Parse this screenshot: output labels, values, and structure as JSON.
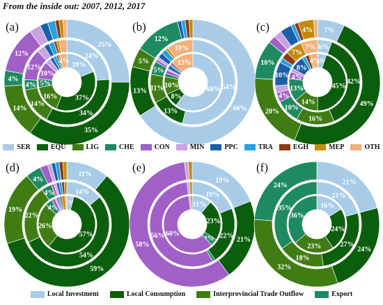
{
  "figure_title": "From the inside out: 2007, 2012, 2017",
  "sector_legend": [
    {
      "name": "SER",
      "color": "#a8cce8"
    },
    {
      "name": "EQU",
      "color": "#0b5e0b"
    },
    {
      "name": "LIG",
      "color": "#3f7d14"
    },
    {
      "name": "CHE",
      "color": "#1f8a60"
    },
    {
      "name": "CON",
      "color": "#a15fc8"
    },
    {
      "name": "MIN",
      "color": "#c9a3e0"
    },
    {
      "name": "PPC",
      "color": "#1a5fa8"
    },
    {
      "name": "TRA",
      "color": "#29a0e0"
    },
    {
      "name": "EGH",
      "color": "#8b3a12"
    },
    {
      "name": "MEP",
      "color": "#c28a0a"
    },
    {
      "name": "OTH",
      "color": "#f3b07a"
    }
  ],
  "demand_legend": [
    {
      "name": "Local Investment",
      "color": "#a8cce8"
    },
    {
      "name": "Local Consumption",
      "color": "#0b5e0b"
    },
    {
      "name": "Interprovincial Trade Outflow",
      "color": "#3f7d14"
    },
    {
      "name": "Export",
      "color": "#1f8a60"
    }
  ],
  "chart_data": [
    {
      "panel": "(a)",
      "type": "pie",
      "variant": "nested-donut",
      "rings": [
        "2007",
        "2012",
        "2017"
      ],
      "categories": [
        "SER",
        "EQU",
        "LIG",
        "CHE",
        "CON",
        "MIN",
        "PPC",
        "TRA",
        "EGH",
        "MEP",
        "OTH"
      ],
      "series": [
        {
          "values": [
            19,
            37,
            16,
            5,
            10,
            3,
            2,
            2,
            1,
            1,
            4
          ]
        },
        {
          "values": [
            24,
            34,
            14,
            4,
            12,
            3,
            2,
            2,
            1,
            1,
            3
          ]
        },
        {
          "values": [
            25,
            35,
            14,
            4,
            12,
            3,
            2,
            2,
            1,
            1,
            1
          ]
        }
      ]
    },
    {
      "panel": "(b)",
      "type": "pie",
      "variant": "nested-donut",
      "rings": [
        "2007",
        "2012",
        "2017"
      ],
      "categories": [
        "SER",
        "EQU",
        "LIG",
        "CHE",
        "CON",
        "MIN",
        "PPC",
        "TRA",
        "EGH",
        "MEP",
        "OTH"
      ],
      "series": [
        {
          "values": [
            60,
            8,
            10,
            2,
            2,
            1,
            2,
            1,
            1,
            0,
            13
          ]
        },
        {
          "values": [
            54,
            13,
            11,
            5,
            1,
            1,
            2,
            2,
            0,
            1,
            10
          ]
        },
        {
          "values": [
            66,
            13,
            5,
            12,
            0,
            0,
            1,
            1,
            1,
            1,
            0
          ]
        }
      ]
    },
    {
      "panel": "(c)",
      "type": "pie",
      "variant": "nested-donut",
      "rings": [
        "2007",
        "2012",
        "2017"
      ],
      "categories": [
        "SER",
        "EQU",
        "LIG",
        "CHE",
        "CON",
        "MIN",
        "PPC",
        "TRA",
        "EGH",
        "MEP",
        "OTH"
      ],
      "series": [
        {
          "values": [
            5,
            45,
            14,
            13,
            4,
            2,
            8,
            2,
            2,
            1,
            4
          ]
        },
        {
          "values": [
            6,
            42,
            16,
            10,
            4,
            3,
            10,
            2,
            3,
            7,
            7
          ]
        },
        {
          "values": [
            7,
            49,
            20,
            10,
            2,
            2,
            3,
            1,
            1,
            4,
            1
          ]
        }
      ]
    },
    {
      "panel": "(d)",
      "type": "pie",
      "variant": "nested-donut",
      "rings": [
        "2007",
        "2012",
        "2017"
      ],
      "categories": [
        "Local Investment",
        "Local Consumption",
        "Interprovincial Trade Outflow",
        "Export",
        "CON",
        "MIN",
        "PPC",
        "TRA",
        "EGH",
        "MEP",
        "OTH"
      ],
      "series": [
        {
          "values": [
            4,
            57,
            26,
            4,
            2,
            1,
            1,
            1,
            1,
            2,
            1
          ]
        },
        {
          "values": [
            14,
            54,
            22,
            4,
            1,
            1,
            1,
            1,
            1,
            1,
            0
          ]
        },
        {
          "values": [
            11,
            59,
            19,
            4,
            2,
            1,
            1,
            1,
            1,
            1,
            0
          ]
        }
      ]
    },
    {
      "panel": "(e)",
      "type": "pie",
      "variant": "nested-donut",
      "rings": [
        "2007",
        "2012",
        "2017"
      ],
      "categories": [
        "Local Investment",
        "Local Consumption",
        "Interprovincial Trade Outflow",
        "Export",
        "CON",
        "MIN",
        "PPC",
        "TRA",
        "EGH",
        "MEP",
        "OTH"
      ],
      "series": [
        {
          "values": [
            11,
            23,
            0,
            4,
            60,
            1,
            0,
            0,
            0,
            1,
            0
          ]
        },
        {
          "values": [
            19,
            22,
            0,
            1,
            56,
            1,
            0,
            0,
            0,
            1,
            0
          ]
        },
        {
          "values": [
            19,
            21,
            0,
            0,
            58,
            1,
            0,
            0,
            0,
            1,
            0
          ]
        }
      ]
    },
    {
      "panel": "(f)",
      "type": "pie",
      "variant": "nested-donut",
      "rings": [
        "2007",
        "2012",
        "2017"
      ],
      "categories": [
        "Local Investment",
        "Local Consumption",
        "Interprovincial Trade Outflow",
        "Export"
      ],
      "series": [
        {
          "values": [
            16,
            24,
            23,
            36
          ]
        },
        {
          "values": [
            21,
            27,
            18,
            35
          ]
        },
        {
          "values": [
            21,
            24,
            32,
            24
          ]
        }
      ]
    }
  ]
}
